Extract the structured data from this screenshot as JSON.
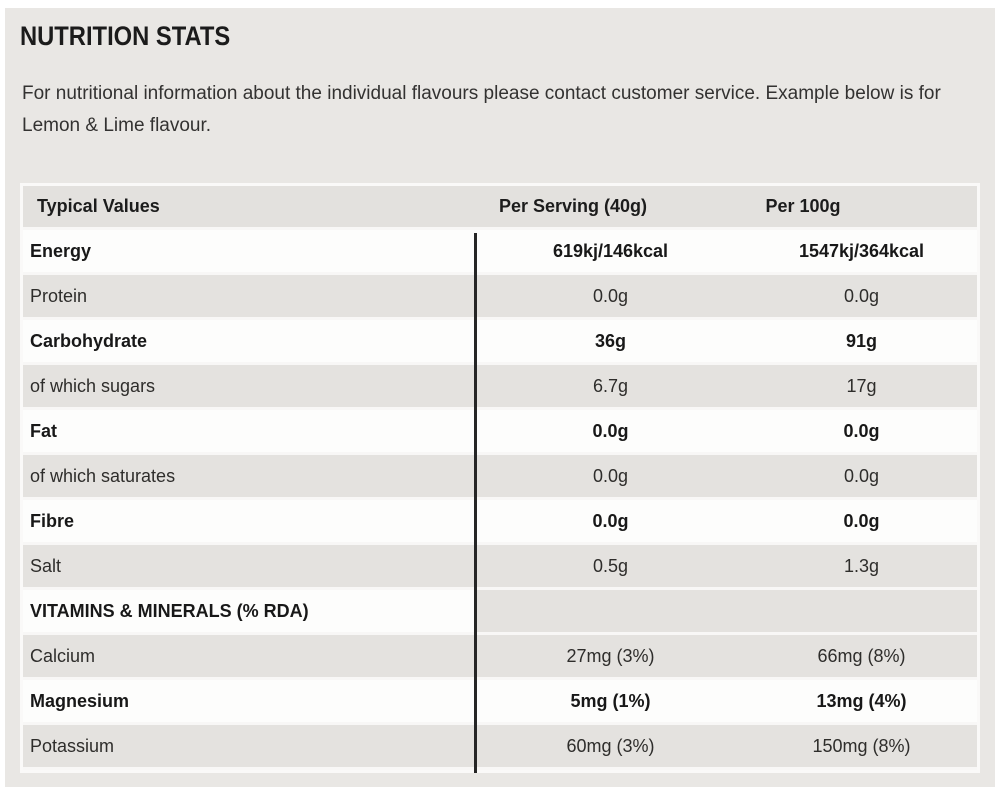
{
  "title": "NUTRITION STATS",
  "intro": "For nutritional information about the individual flavours please contact customer service. Example below is for Lemon & Lime flavour.",
  "colors": {
    "panel_background": "#e9e7e4",
    "row_gray": "#e4e2df",
    "row_white": "#fdfdfc",
    "divider_line": "#262626",
    "text_dark": "#1b1b1b"
  },
  "table": {
    "headers": [
      "Typical Values",
      "Per Serving (40g)",
      "Per 100g"
    ],
    "rows": [
      {
        "label": "Energy",
        "per_serving": "619kj/146kcal",
        "per_100g": "1547kj/364kcal",
        "emphasis": true,
        "section": false
      },
      {
        "label": "Protein",
        "per_serving": "0.0g",
        "per_100g": "0.0g",
        "emphasis": false,
        "section": false
      },
      {
        "label": "Carbohydrate",
        "per_serving": "36g",
        "per_100g": "91g",
        "emphasis": true,
        "section": false
      },
      {
        "label": "of which sugars",
        "per_serving": "6.7g",
        "per_100g": "17g",
        "emphasis": false,
        "section": false
      },
      {
        "label": "Fat",
        "per_serving": "0.0g",
        "per_100g": "0.0g",
        "emphasis": true,
        "section": false
      },
      {
        "label": "of which saturates",
        "per_serving": "0.0g",
        "per_100g": "0.0g",
        "emphasis": false,
        "section": false
      },
      {
        "label": "Fibre",
        "per_serving": "0.0g",
        "per_100g": "0.0g",
        "emphasis": true,
        "section": false
      },
      {
        "label": "Salt",
        "per_serving": "0.5g",
        "per_100g": "1.3g",
        "emphasis": false,
        "section": false
      },
      {
        "label": "VITAMINS & MINERALS (% RDA)",
        "per_serving": "",
        "per_100g": "",
        "emphasis": true,
        "section": true
      },
      {
        "label": "Calcium",
        "per_serving": "27mg (3%)",
        "per_100g": "66mg (8%)",
        "emphasis": false,
        "section": false
      },
      {
        "label": "Magnesium",
        "per_serving": "5mg (1%)",
        "per_100g": "13mg (4%)",
        "emphasis": true,
        "section": false
      },
      {
        "label": "Potassium",
        "per_serving": "60mg (3%)",
        "per_100g": "150mg (8%)",
        "emphasis": false,
        "section": false
      }
    ]
  }
}
